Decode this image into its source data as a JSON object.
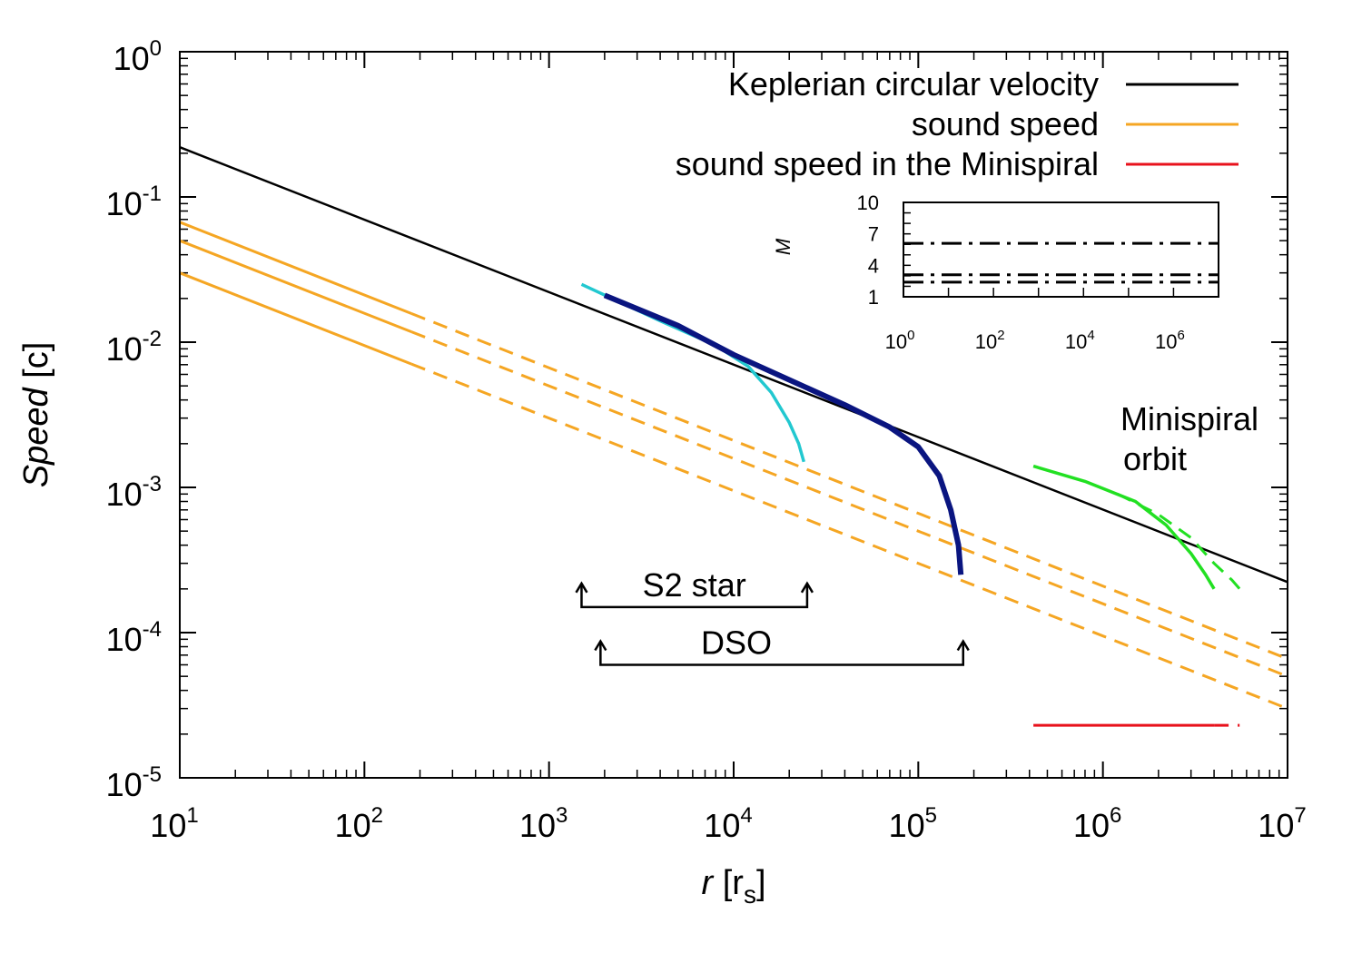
{
  "chart_data": {
    "type": "line",
    "title": "",
    "xlabel": {
      "italic": "r",
      "rest": "[r",
      "sub": "s",
      "close": "]"
    },
    "ylabel": {
      "italic": "Speed",
      "rest": "[c]"
    },
    "xscale": "log",
    "yscale": "log",
    "xlim": [
      10,
      10000000
    ],
    "ylim": [
      1e-05,
      1
    ],
    "x_ticks": [
      {
        "base": "10",
        "exp": "1"
      },
      {
        "base": "10",
        "exp": "2"
      },
      {
        "base": "10",
        "exp": "3"
      },
      {
        "base": "10",
        "exp": "4"
      },
      {
        "base": "10",
        "exp": "5"
      },
      {
        "base": "10",
        "exp": "6"
      },
      {
        "base": "10",
        "exp": "7"
      }
    ],
    "y_ticks": [
      {
        "base": "10",
        "exp": "-5"
      },
      {
        "base": "10",
        "exp": "-4"
      },
      {
        "base": "10",
        "exp": "-3"
      },
      {
        "base": "10",
        "exp": "-2"
      },
      {
        "base": "10",
        "exp": "-1"
      },
      {
        "base": "10",
        "exp": "0"
      }
    ],
    "legend_position": "top-right",
    "legend": [
      {
        "label": "Keplerian circular velocity",
        "color": "#000000"
      },
      {
        "label": "sound speed",
        "color": "#f5a623"
      },
      {
        "label": "sound speed in the Minispiral",
        "color": "#e8121c"
      }
    ],
    "series": [
      {
        "name": "Keplerian circular velocity",
        "color": "#000000",
        "style": "solid",
        "x": [
          10,
          10000000
        ],
        "y": [
          0.22,
          0.000223
        ]
      },
      {
        "name": "sound speed (upper)",
        "color": "#f5a623",
        "style": "solid-then-dashed",
        "break_x": 180,
        "x": [
          10,
          10000000
        ],
        "y": [
          0.067,
          6.6e-05
        ]
      },
      {
        "name": "sound speed (middle)",
        "color": "#f5a623",
        "style": "solid-then-dashed",
        "break_x": 180,
        "x": [
          10,
          10000000
        ],
        "y": [
          0.05,
          5e-05
        ]
      },
      {
        "name": "sound speed (lower)",
        "color": "#f5a623",
        "style": "solid-then-dashed",
        "break_x": 180,
        "x": [
          10,
          10000000
        ],
        "y": [
          0.03,
          3e-05
        ]
      },
      {
        "name": "sound speed in the Minispiral",
        "color": "#e8121c",
        "style": "solid-then-dashed",
        "break_x": 4000000,
        "x": [
          420000,
          5500000
        ],
        "y": [
          2.3e-05,
          2.3e-05
        ]
      },
      {
        "name": "S2 star orbit",
        "color": "#22c8d0",
        "style": "solid",
        "x": [
          1500,
          4000,
          8000,
          12000,
          16000,
          20000,
          22500,
          24000
        ],
        "y": [
          0.025,
          0.014,
          0.0095,
          0.0068,
          0.0045,
          0.0028,
          0.002,
          0.0015
        ]
      },
      {
        "name": "DSO orbit",
        "color": "#0a1580",
        "style": "solid-thick",
        "x": [
          2000,
          5000,
          10000,
          20000,
          40000,
          70000,
          100000,
          130000,
          150000,
          165000,
          170000
        ],
        "y": [
          0.021,
          0.013,
          0.0082,
          0.0055,
          0.0037,
          0.0026,
          0.0019,
          0.0012,
          0.0007,
          0.0004,
          0.00025
        ]
      },
      {
        "name": "Minispiral orbit (solid)",
        "color": "#22e022",
        "style": "solid",
        "x": [
          420000,
          800000,
          1500000,
          2200000,
          3000000,
          3600000,
          4000000
        ],
        "y": [
          0.0014,
          0.0011,
          0.0008,
          0.00055,
          0.00035,
          0.00025,
          0.0002
        ]
      },
      {
        "name": "Minispiral orbit (dashed)",
        "color": "#22e022",
        "style": "dashed",
        "x": [
          1200000,
          2000000,
          3000000,
          4000000,
          5000000,
          5500000
        ],
        "y": [
          0.0009,
          0.00065,
          0.00045,
          0.0003,
          0.00023,
          0.0002
        ]
      }
    ],
    "annotations": [
      {
        "text": "S2 star",
        "range_x": [
          1500,
          25000
        ],
        "y": 0.00015
      },
      {
        "text": "DSO",
        "range_x": [
          1900,
          175000
        ],
        "y": 6e-05
      },
      {
        "text": "Minispiral",
        "x": 2500000,
        "y": 0.0025
      },
      {
        "text": "orbit",
        "x": 2500000,
        "y": 0.0015
      }
    ],
    "inset": {
      "ylabel": "M",
      "xscale": "log",
      "xlim": [
        1,
        10000000
      ],
      "ylim": [
        1,
        10
      ],
      "x_ticks": [
        {
          "base": "10",
          "exp": "0"
        },
        {
          "base": "10",
          "exp": "2"
        },
        {
          "base": "10",
          "exp": "4"
        },
        {
          "base": "10",
          "exp": "6"
        }
      ],
      "y_ticks": [
        "1",
        "4",
        "7",
        "10"
      ],
      "series": [
        {
          "name": "M upper",
          "style": "dash-dot",
          "y": 6.1
        },
        {
          "name": "M middle",
          "style": "dash-dot",
          "y": 3.1
        },
        {
          "name": "M lower",
          "style": "dash-dot",
          "y": 2.4
        }
      ]
    }
  }
}
